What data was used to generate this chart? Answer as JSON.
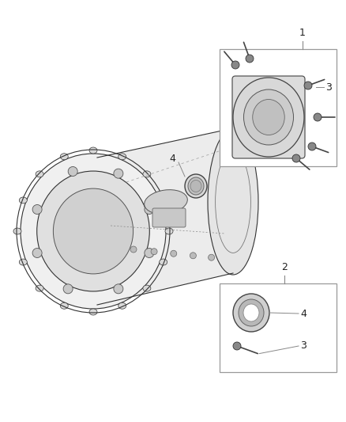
{
  "bg_color": "#ffffff",
  "fig_width": 4.38,
  "fig_height": 5.33,
  "dpi": 100,
  "line_color": "#333333",
  "label_color": "#222222",
  "box_edge_color": "#999999",
  "box_face_color": "#ffffff",
  "part_edge_color": "#444444",
  "part_face_color": "#e8e8e8",
  "label_fontsize": 9,
  "callout_line_color": "#888888"
}
